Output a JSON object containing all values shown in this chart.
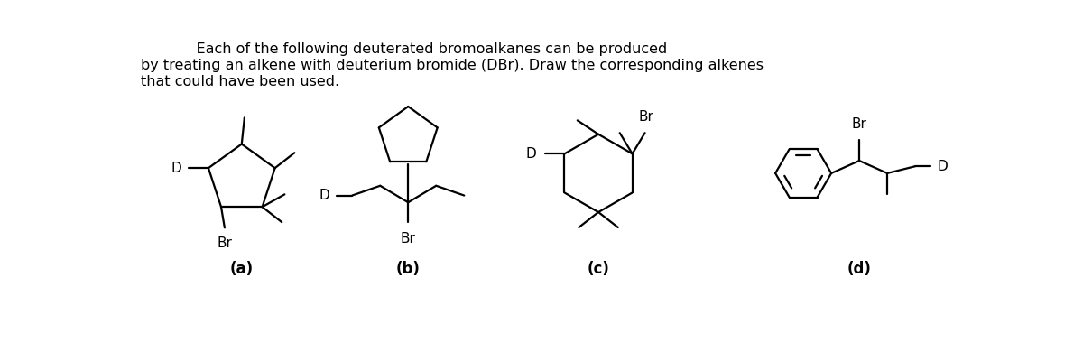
{
  "bg_color": "#ffffff",
  "line_color": "#000000",
  "title_line1": "            Each of the following deuterated bromoalkanes can be produced",
  "title_line2": "by treating an alkene with deuterium bromide (DBr). Draw the corresponding alkenes",
  "title_line3": "that could have been used.",
  "label_fontsize": 11,
  "title_fontsize": 11.5,
  "label_a": "(a)",
  "label_b": "(b)",
  "label_c": "(c)",
  "label_d": "(d)"
}
